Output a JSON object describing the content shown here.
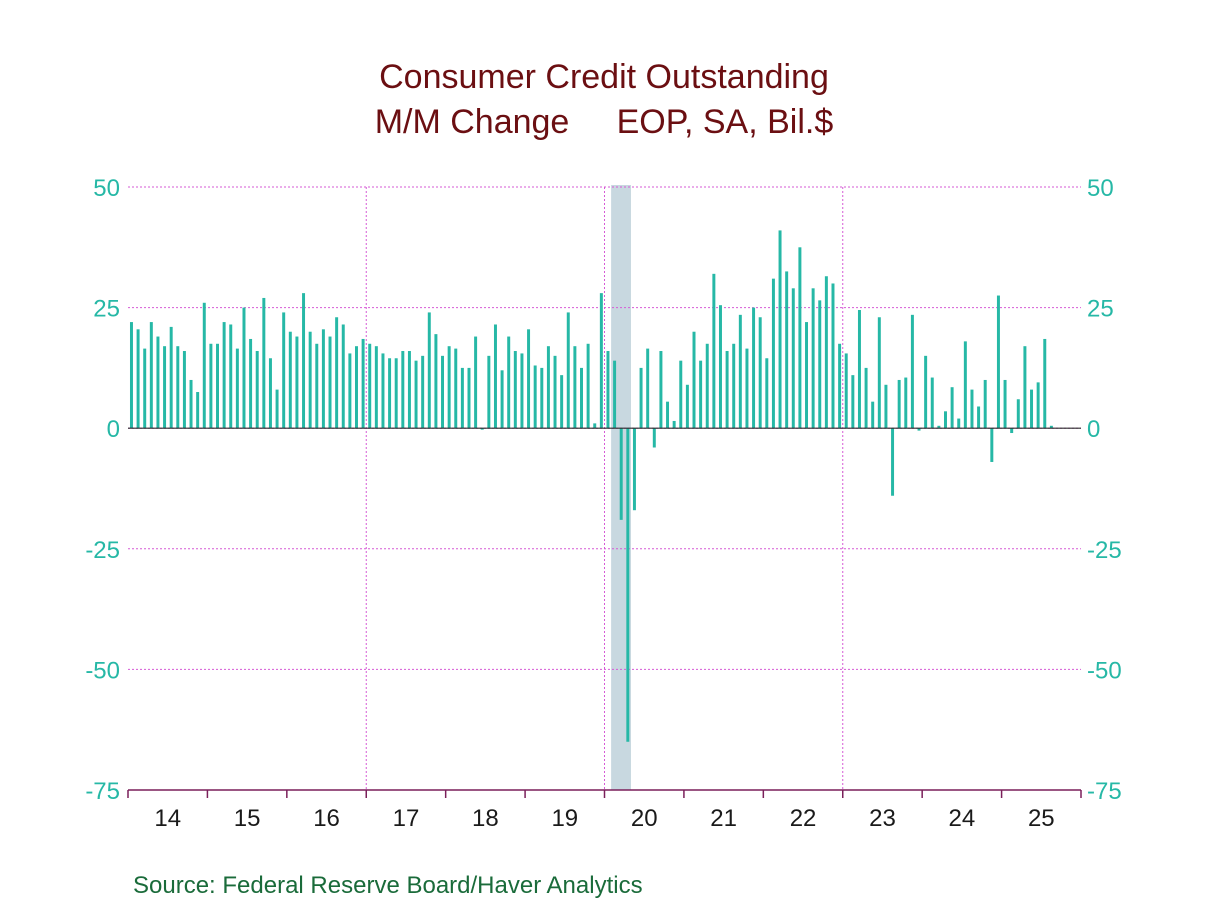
{
  "chart_data": {
    "type": "bar",
    "title": "Consumer Credit Outstanding",
    "subtitle": "M/M Change     EOP, SA, Bil.$",
    "source": "Source:  Federal Reserve Board/Haver Analytics",
    "ylim": [
      -75,
      50
    ],
    "y_ticks": [
      "50",
      "25",
      "0",
      "-25",
      "-50",
      "-75"
    ],
    "y_tick_values": [
      50,
      25,
      0,
      -25,
      -50,
      -75
    ],
    "x_tick_labels": [
      "14",
      "15",
      "16",
      "17",
      "18",
      "19",
      "20",
      "21",
      "22",
      "23",
      "24",
      "25"
    ],
    "x_start": "2014-01",
    "recession": {
      "start": "2020-02",
      "end": "2020-04"
    },
    "grid": true,
    "colors": {
      "bars": "#26b8a6",
      "grid": "#d65ad6",
      "recession": "#c8d8e0",
      "title": "#6b0f12",
      "axis": "#7a1f5a",
      "source": "#1a6b3a"
    },
    "values": [
      22,
      20.5,
      16.5,
      22,
      19,
      17,
      21,
      17,
      16,
      10,
      7.5,
      26,
      17.5,
      17.5,
      22,
      21.5,
      16.5,
      25,
      18.5,
      16,
      27,
      14.5,
      8,
      24,
      20,
      19,
      28,
      20,
      17.5,
      20.5,
      19,
      23,
      21.5,
      15.5,
      17,
      18.5,
      17.5,
      17,
      15.5,
      14.5,
      14.5,
      16,
      16,
      14,
      15,
      24,
      19.5,
      15,
      17,
      16.5,
      12.5,
      12.5,
      19,
      -0.3,
      15,
      21.5,
      12,
      19,
      16,
      15.5,
      20.5,
      13,
      12.5,
      17,
      15,
      11,
      24,
      17,
      12.5,
      17.5,
      1,
      28,
      16,
      14,
      -19,
      -65,
      -17,
      12.5,
      16.5,
      -4,
      16,
      5.5,
      1.5,
      14,
      9,
      20,
      14,
      17.5,
      32,
      25.5,
      16,
      17.5,
      23.5,
      16.5,
      25,
      23,
      14.5,
      31,
      41,
      32.5,
      29,
      37.5,
      22,
      29,
      26.5,
      31.5,
      30,
      17.5,
      15.5,
      11,
      24.5,
      12.5,
      5.5,
      23,
      9,
      -14,
      10,
      10.5,
      23.5,
      -0.5,
      15,
      10.5,
      0.5,
      3.5,
      8.5,
      2,
      18,
      8,
      4.5,
      10,
      -7,
      27.5,
      10,
      -1,
      6,
      17,
      8,
      9.5,
      18.5,
      0.5
    ]
  }
}
